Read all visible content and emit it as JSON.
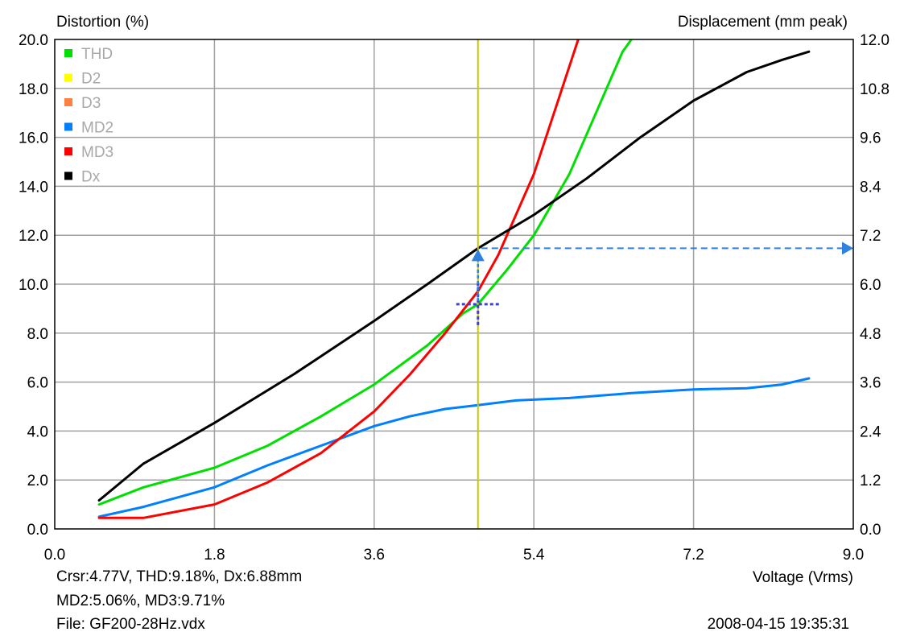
{
  "chart_data": {
    "type": "line",
    "title": "",
    "y_left_label": "Distortion (%)",
    "y_right_label": "Displacement (mm peak)",
    "xlabel": "Voltage (Vrms)",
    "xlim": [
      0,
      9
    ],
    "ylim_left": [
      0,
      20
    ],
    "ylim_right": [
      0,
      12
    ],
    "x_ticks": [
      "0.0",
      "1.8",
      "3.6",
      "5.4",
      "7.2",
      "9.0"
    ],
    "y_left_ticks": [
      "0.0",
      "2.0",
      "4.0",
      "6.0",
      "8.0",
      "10.0",
      "12.0",
      "14.0",
      "16.0",
      "18.0",
      "20.0"
    ],
    "y_right_ticks": [
      "0.0",
      "1.2",
      "2.4",
      "3.6",
      "4.8",
      "6.0",
      "7.2",
      "8.4",
      "9.6",
      "10.8",
      "12.0"
    ],
    "grid": true,
    "legend_position": "top-left",
    "legend": [
      {
        "name": "THD",
        "color": "#00e000"
      },
      {
        "name": "D2",
        "color": "#ffff00"
      },
      {
        "name": "D3",
        "color": "#ff8040"
      },
      {
        "name": "MD2",
        "color": "#0080ff"
      },
      {
        "name": "MD3",
        "color": "#ff0000"
      },
      {
        "name": "Dx",
        "color": "#000000"
      }
    ],
    "series": [
      {
        "name": "THD",
        "axis": "left",
        "color": "#00e000",
        "x": [
          0.5,
          1.0,
          1.8,
          2.4,
          3.0,
          3.6,
          4.2,
          4.6,
          4.77,
          5.1,
          5.4,
          5.8,
          6.1,
          6.4,
          6.5
        ],
        "y": [
          1.0,
          1.7,
          2.5,
          3.4,
          4.6,
          5.9,
          7.5,
          8.8,
          9.18,
          10.6,
          12.0,
          14.5,
          17.0,
          19.5,
          20.0
        ]
      },
      {
        "name": "MD2",
        "axis": "left",
        "color": "#0080ff",
        "x": [
          0.5,
          1.0,
          1.8,
          2.4,
          3.0,
          3.6,
          4.0,
          4.4,
          4.77,
          5.2,
          5.8,
          6.5,
          7.2,
          7.8,
          8.2,
          8.5
        ],
        "y": [
          0.5,
          0.9,
          1.7,
          2.6,
          3.4,
          4.2,
          4.6,
          4.9,
          5.06,
          5.25,
          5.35,
          5.55,
          5.7,
          5.75,
          5.9,
          6.15
        ]
      },
      {
        "name": "MD3",
        "axis": "left",
        "color": "#ff0000",
        "x": [
          0.5,
          1.0,
          1.8,
          2.4,
          3.0,
          3.6,
          4.0,
          4.4,
          4.77,
          5.0,
          5.4,
          5.7,
          5.9
        ],
        "y": [
          0.45,
          0.45,
          1.0,
          1.9,
          3.1,
          4.8,
          6.3,
          8.0,
          9.71,
          11.2,
          14.5,
          17.8,
          20.0
        ]
      },
      {
        "name": "Dx",
        "axis": "right",
        "color": "#000000",
        "x": [
          0.5,
          1.0,
          1.8,
          2.7,
          3.6,
          4.2,
          4.77,
          5.4,
          6.0,
          6.6,
          7.2,
          7.8,
          8.2,
          8.5
        ],
        "y": [
          0.7,
          1.6,
          2.6,
          3.8,
          5.1,
          6.0,
          6.88,
          7.7,
          8.6,
          9.6,
          10.5,
          11.2,
          11.5,
          11.7
        ]
      }
    ],
    "cursor": {
      "x": 4.77,
      "thd": 9.18,
      "dx": 6.88,
      "color": "#c8c800",
      "marker_color": "#4040d0",
      "arrow_color": "#3080e0"
    }
  },
  "info": {
    "cursor_line1": "Crsr:4.77V, THD:9.18%, Dx:6.88mm",
    "cursor_line2": "MD2:5.06%, MD3:9.71%",
    "file": "File: GF200-28Hz.vdx",
    "timestamp": "2008-04-15  19:35:31"
  }
}
